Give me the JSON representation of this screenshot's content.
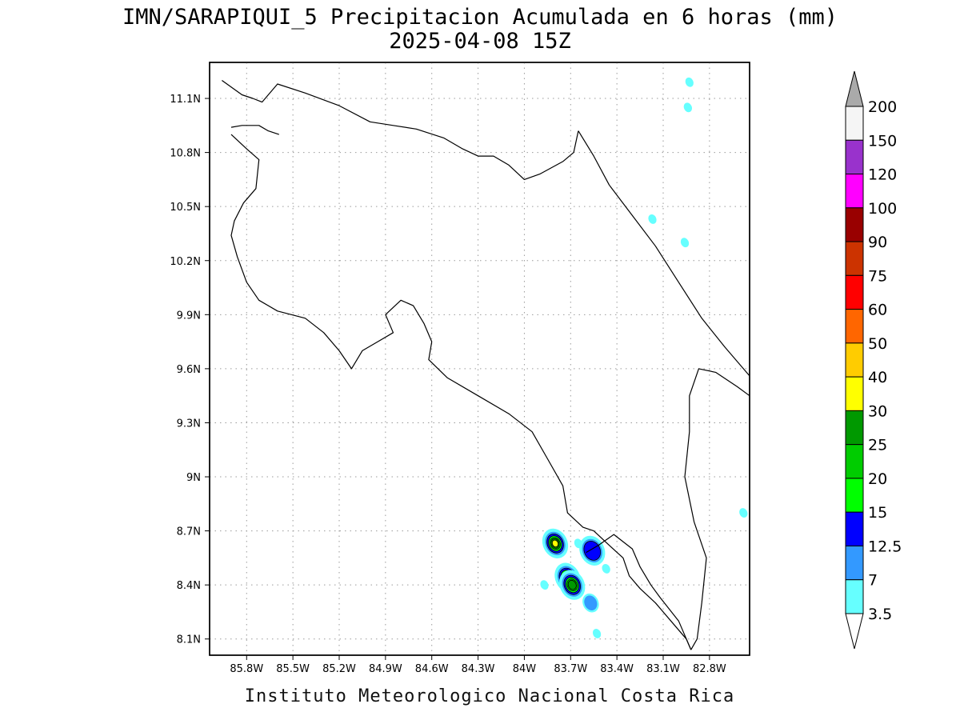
{
  "map": {
    "title": "IMN/SARAPIQUI_5 Precipitacion Acumulada en 6 horas (mm)",
    "subtitle": "2025-04-08 15Z",
    "footer": "Instituto Meteorologico Nacional Costa Rica",
    "lon_range": [
      -86.04,
      -82.54
    ],
    "lat_range": [
      8.01,
      11.3
    ],
    "lon_ticks": [
      "85.8W",
      "85.5W",
      "85.2W",
      "84.9W",
      "84.6W",
      "84.3W",
      "84W",
      "83.7W",
      "83.4W",
      "83.1W",
      "82.8W"
    ],
    "lon_tick_values": [
      -85.8,
      -85.5,
      -85.2,
      -84.9,
      -84.6,
      -84.3,
      -84.0,
      -83.7,
      -83.4,
      -83.1,
      -82.8
    ],
    "lat_ticks": [
      "11.1N",
      "10.8N",
      "10.5N",
      "10.2N",
      "9.9N",
      "9.6N",
      "9.3N",
      "9N",
      "8.7N",
      "8.4N",
      "8.1N"
    ],
    "lat_tick_values": [
      11.1,
      10.8,
      10.5,
      10.2,
      9.9,
      9.6,
      9.3,
      9.0,
      8.7,
      8.4,
      8.1
    ],
    "grid": true
  },
  "legend": {
    "placement": "right",
    "labels": [
      "200",
      "150",
      "120",
      "100",
      "90",
      "75",
      "60",
      "50",
      "40",
      "30",
      "25",
      "20",
      "15",
      "12.5",
      "7",
      "3.5"
    ],
    "colors_top_to_bottom": [
      "#aaaaaa",
      "#f5f5f5",
      "#9932cc",
      "#ff00ff",
      "#990000",
      "#cc3300",
      "#ff0000",
      "#ff6600",
      "#ffcc00",
      "#ffff00",
      "#009900",
      "#00cc00",
      "#00ff00",
      "#0000ff",
      "#3399ff",
      "#66ffff",
      "#ffffff"
    ]
  },
  "precip_cells": [
    {
      "lon": -83.8,
      "lat": 8.63,
      "value": 30
    },
    {
      "lon": -83.72,
      "lat": 8.44,
      "value": 40
    },
    {
      "lon": -83.69,
      "lat": 8.4,
      "value": 25
    },
    {
      "lon": -83.57,
      "lat": 8.3,
      "value": 7
    },
    {
      "lon": -83.56,
      "lat": 8.59,
      "value": 12.5
    },
    {
      "lon": -83.65,
      "lat": 8.63,
      "value": 3.5
    },
    {
      "lon": -83.47,
      "lat": 8.49,
      "value": 3.5
    },
    {
      "lon": -83.53,
      "lat": 8.13,
      "value": 3.5
    },
    {
      "lon": -82.93,
      "lat": 11.19,
      "value": 3.5
    },
    {
      "lon": -82.94,
      "lat": 11.05,
      "value": 3.5
    },
    {
      "lon": -83.17,
      "lat": 10.43,
      "value": 3.5
    },
    {
      "lon": -82.96,
      "lat": 10.3,
      "value": 3.5
    },
    {
      "lon": -82.58,
      "lat": 8.8,
      "value": 3.5
    },
    {
      "lon": -83.87,
      "lat": 8.4,
      "value": 3.5
    }
  ],
  "coastlines": {
    "nicaragua_border": [
      [
        -85.96,
        11.2
      ],
      [
        -85.83,
        11.12
      ],
      [
        -85.76,
        11.1
      ],
      [
        -85.7,
        11.08
      ],
      [
        -85.6,
        11.18
      ],
      [
        -85.42,
        11.13
      ],
      [
        -85.2,
        11.06
      ],
      [
        -85.0,
        10.97
      ],
      [
        -84.85,
        10.95
      ],
      [
        -84.7,
        10.93
      ],
      [
        -84.52,
        10.88
      ],
      [
        -84.4,
        10.82
      ],
      [
        -84.3,
        10.78
      ],
      [
        -84.2,
        10.78
      ],
      [
        -84.1,
        10.73
      ],
      [
        -84.0,
        10.65
      ],
      [
        -83.9,
        10.68
      ],
      [
        -83.75,
        10.75
      ],
      [
        -83.68,
        10.8
      ],
      [
        -83.65,
        10.92
      ]
    ],
    "gulf_border": [
      [
        -85.59,
        10.9
      ],
      [
        -85.66,
        10.92
      ],
      [
        -85.72,
        10.95
      ],
      [
        -85.83,
        10.95
      ],
      [
        -85.9,
        10.94
      ]
    ],
    "pacific_coast": [
      [
        -85.9,
        10.9
      ],
      [
        -85.8,
        10.82
      ],
      [
        -85.72,
        10.76
      ],
      [
        -85.74,
        10.6
      ],
      [
        -85.82,
        10.52
      ],
      [
        -85.88,
        10.42
      ],
      [
        -85.9,
        10.34
      ],
      [
        -85.86,
        10.22
      ],
      [
        -85.8,
        10.08
      ],
      [
        -85.72,
        9.98
      ],
      [
        -85.6,
        9.92
      ],
      [
        -85.42,
        9.88
      ],
      [
        -85.3,
        9.8
      ],
      [
        -85.2,
        9.7
      ],
      [
        -85.12,
        9.6
      ],
      [
        -85.05,
        9.7
      ],
      [
        -84.95,
        9.75
      ],
      [
        -84.85,
        9.8
      ],
      [
        -84.9,
        9.9
      ],
      [
        -84.8,
        9.98
      ],
      [
        -84.72,
        9.95
      ],
      [
        -84.65,
        9.85
      ],
      [
        -84.6,
        9.75
      ],
      [
        -84.62,
        9.65
      ],
      [
        -84.5,
        9.55
      ],
      [
        -84.3,
        9.45
      ],
      [
        -84.1,
        9.35
      ],
      [
        -83.95,
        9.25
      ],
      [
        -83.85,
        9.1
      ],
      [
        -83.75,
        8.95
      ],
      [
        -83.72,
        8.8
      ],
      [
        -83.62,
        8.72
      ],
      [
        -83.55,
        8.7
      ]
    ],
    "golfo_dulce_east": [
      [
        -83.55,
        8.7
      ],
      [
        -83.45,
        8.62
      ],
      [
        -83.36,
        8.55
      ],
      [
        -83.32,
        8.45
      ],
      [
        -83.25,
        8.38
      ],
      [
        -83.15,
        8.3
      ],
      [
        -83.05,
        8.2
      ],
      [
        -82.95,
        8.1
      ],
      [
        -82.92,
        8.04
      ]
    ],
    "caribbean_coast": [
      [
        -83.65,
        10.92
      ],
      [
        -83.55,
        10.78
      ],
      [
        -83.45,
        10.62
      ],
      [
        -83.3,
        10.45
      ],
      [
        -83.15,
        10.28
      ],
      [
        -83.0,
        10.08
      ],
      [
        -82.85,
        9.88
      ],
      [
        -82.7,
        9.72
      ],
      [
        -82.6,
        9.62
      ],
      [
        -82.54,
        9.56
      ]
    ],
    "panama_border": [
      [
        -82.92,
        8.04
      ],
      [
        -82.88,
        8.1
      ],
      [
        -82.85,
        8.3
      ],
      [
        -82.82,
        8.55
      ],
      [
        -82.9,
        8.75
      ],
      [
        -82.96,
        9.0
      ],
      [
        -82.93,
        9.25
      ],
      [
        -82.93,
        9.45
      ],
      [
        -82.87,
        9.6
      ],
      [
        -82.76,
        9.58
      ],
      [
        -82.62,
        9.5
      ],
      [
        -82.54,
        9.45
      ]
    ],
    "pacific_east_shore": [
      [
        -82.92,
        8.04
      ],
      [
        -83.0,
        8.2
      ],
      [
        -83.12,
        8.33
      ],
      [
        -83.18,
        8.4
      ],
      [
        -83.25,
        8.5
      ],
      [
        -83.3,
        8.6
      ],
      [
        -83.42,
        8.68
      ],
      [
        -83.52,
        8.62
      ],
      [
        -83.6,
        8.58
      ]
    ]
  }
}
